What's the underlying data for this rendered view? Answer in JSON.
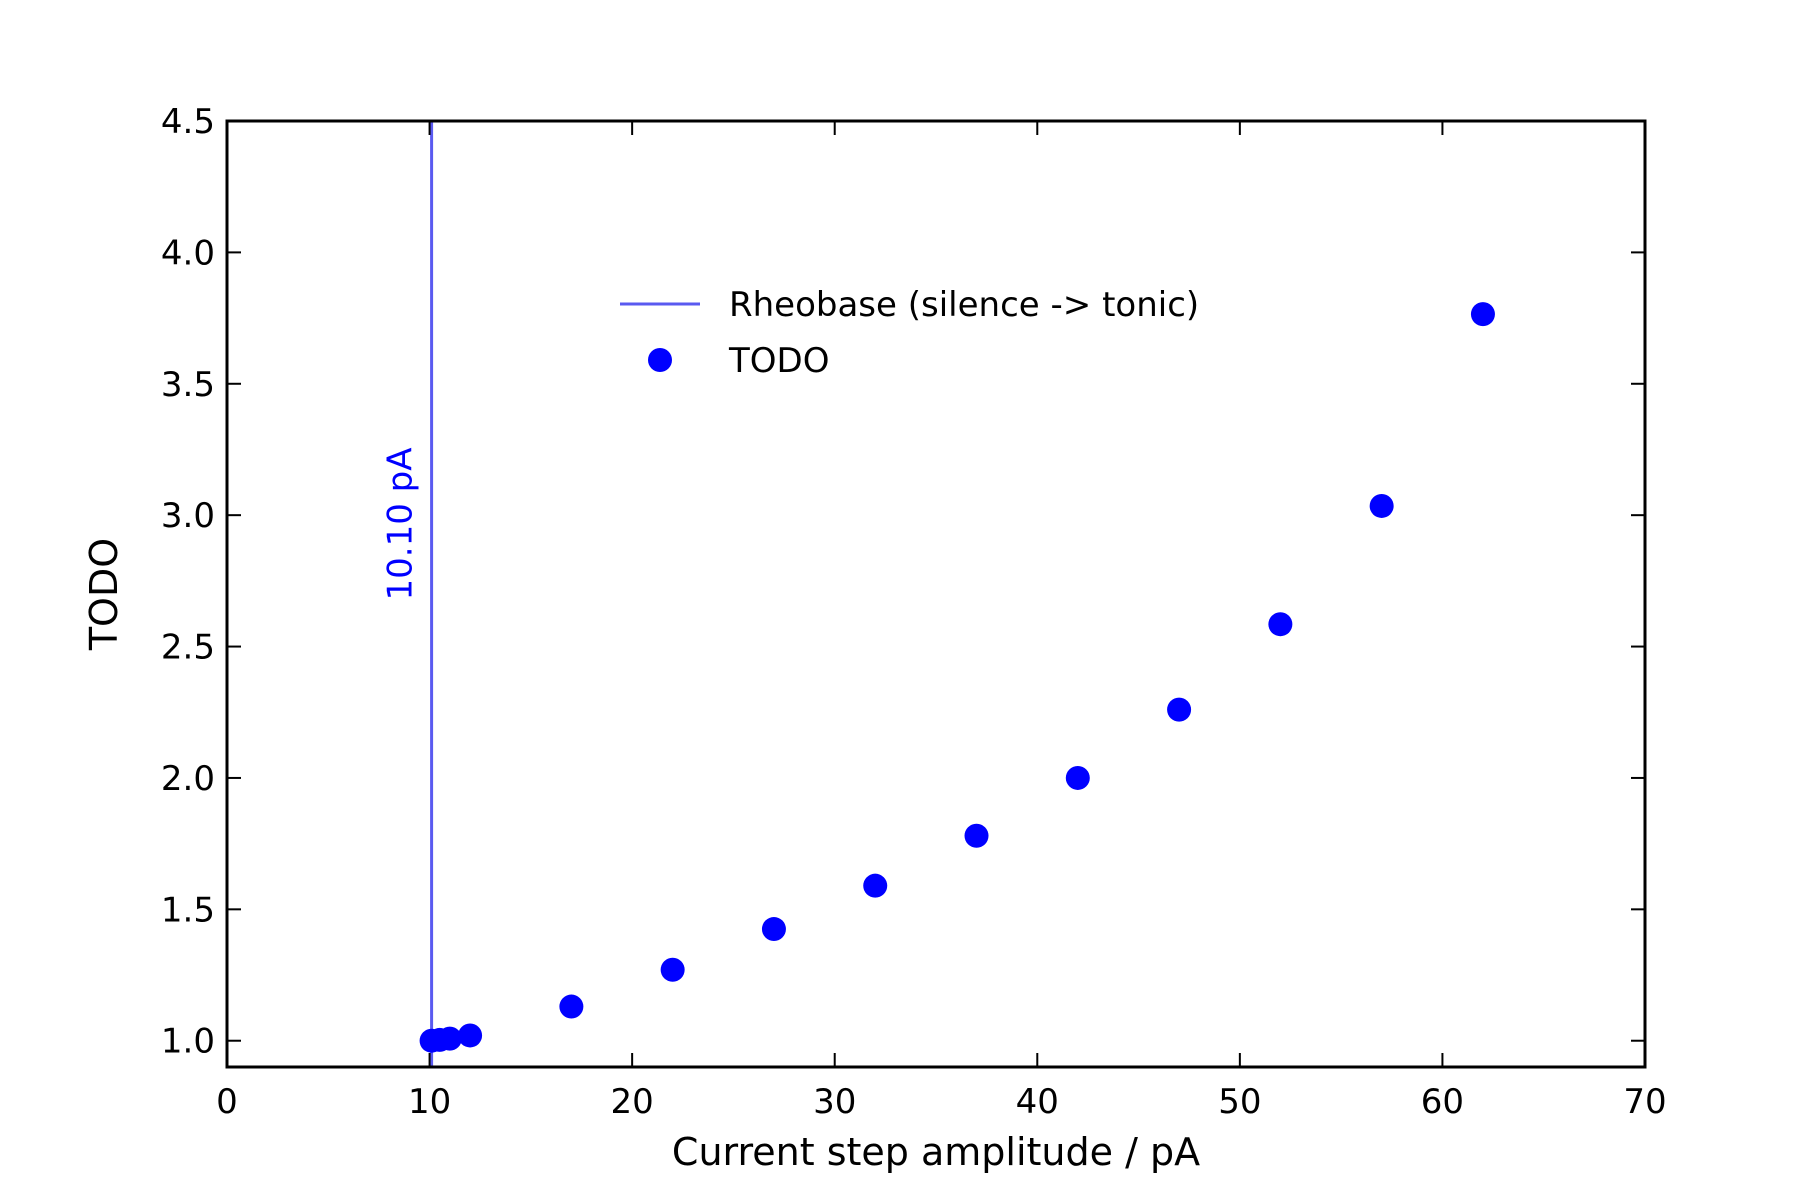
{
  "chart_data": {
    "type": "scatter",
    "title": "",
    "xlabel": "Current step amplitude / pA",
    "ylabel": "TODO",
    "xlim": [
      0,
      70
    ],
    "ylim": [
      0.9,
      4.5
    ],
    "x_ticks": [
      0,
      10,
      20,
      30,
      40,
      50,
      60,
      70
    ],
    "x_tick_labels": [
      "0",
      "10",
      "20",
      "30",
      "40",
      "50",
      "60",
      "70"
    ],
    "y_ticks": [
      1.0,
      1.5,
      2.0,
      2.5,
      3.0,
      3.5,
      4.0,
      4.5
    ],
    "y_tick_labels": [
      "1.0",
      "1.5",
      "2.0",
      "2.5",
      "3.0",
      "3.5",
      "4.0",
      "4.5"
    ],
    "grid": false,
    "legend_position": "upper-center",
    "series": [
      {
        "name": "TODO",
        "marker": "circle",
        "color": "#0000ff",
        "x": [
          10.1,
          10.5,
          11.0,
          12.0,
          17.0,
          22.0,
          27.0,
          32.0,
          37.0,
          42.0,
          47.0,
          52.0,
          57.0,
          62.0
        ],
        "y": [
          1.0,
          1.003,
          1.008,
          1.02,
          1.13,
          1.27,
          1.425,
          1.59,
          1.78,
          2.0,
          2.26,
          2.585,
          3.035,
          3.765
        ]
      }
    ],
    "reference_lines": [
      {
        "name": "Rheobase (silence -> tonic)",
        "orientation": "vertical",
        "x": 10.1,
        "color": "#5a5af0",
        "annotation": "10.10 pA",
        "annotation_color": "#0000ff"
      }
    ],
    "legend": [
      {
        "label": "Rheobase (silence -> tonic)",
        "kind": "line",
        "color": "#5a5af0"
      },
      {
        "label": "TODO",
        "kind": "marker",
        "color": "#0000ff"
      }
    ]
  }
}
